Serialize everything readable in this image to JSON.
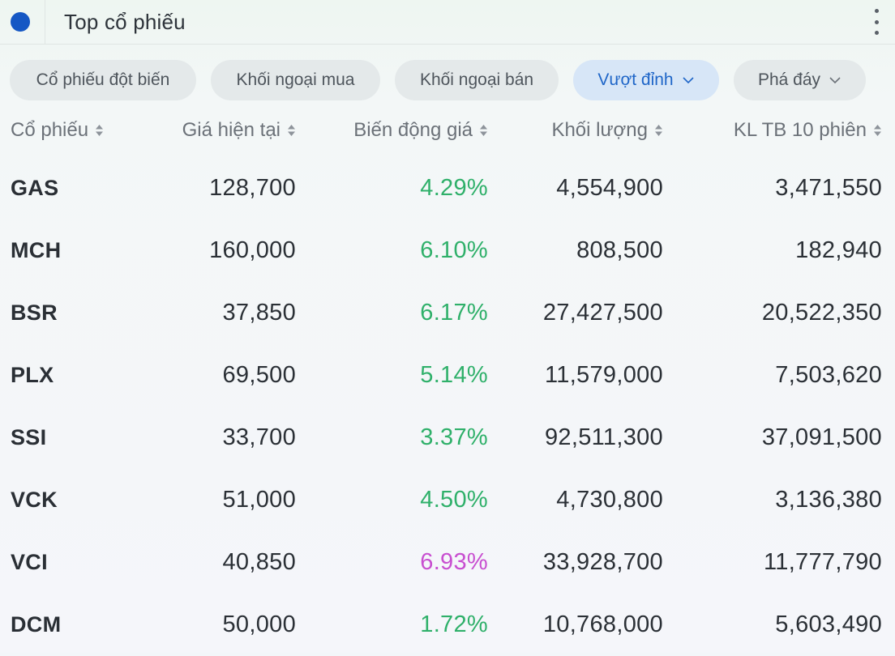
{
  "header": {
    "title": "Top cổ phiếu"
  },
  "chips": [
    {
      "label": "Cổ phiếu đột biến",
      "active": false,
      "dropdown": false
    },
    {
      "label": "Khối ngoại mua",
      "active": false,
      "dropdown": false
    },
    {
      "label": "Khối ngoại bán",
      "active": false,
      "dropdown": false
    },
    {
      "label": "Vượt đỉnh",
      "active": true,
      "dropdown": true
    },
    {
      "label": "Phá đáy",
      "active": false,
      "dropdown": true
    }
  ],
  "table": {
    "columns": [
      "Cổ phiếu",
      "Giá hiện tại",
      "Biến động giá",
      "Khối lượng",
      "KL TB 10 phiên"
    ],
    "rows": [
      [
        "GAS",
        "128,700",
        "4.29%",
        "4,554,900",
        "3,471,550"
      ],
      [
        "MCH",
        "160,000",
        "6.10%",
        "808,500",
        "182,940"
      ],
      [
        "BSR",
        "37,850",
        "6.17%",
        "27,427,500",
        "20,522,350"
      ],
      [
        "PLX",
        "69,500",
        "5.14%",
        "11,579,000",
        "7,503,620"
      ],
      [
        "SSI",
        "33,700",
        "3.37%",
        "92,511,300",
        "37,091,500"
      ],
      [
        "VCK",
        "51,000",
        "4.50%",
        "4,730,800",
        "3,136,380"
      ],
      [
        "VCI",
        "40,850",
        "6.93%",
        "33,928,700",
        "11,777,790"
      ],
      [
        "DCM",
        "50,000",
        "1.72%",
        "10,768,000",
        "5,603,490"
      ]
    ],
    "ceiling_rows": [
      6
    ]
  },
  "colors": {
    "accent": "#1557c4",
    "active_chip_bg": "#d7e6f7",
    "active_chip_text": "#1f66c8",
    "up": "#2fb06a",
    "ceiling": "#c84fd0"
  },
  "icons": {
    "status_dot": "circle-dot-icon",
    "menu": "kebab-menu-icon",
    "sort": "sort-arrows-icon",
    "dropdown": "chevron-down-icon"
  }
}
